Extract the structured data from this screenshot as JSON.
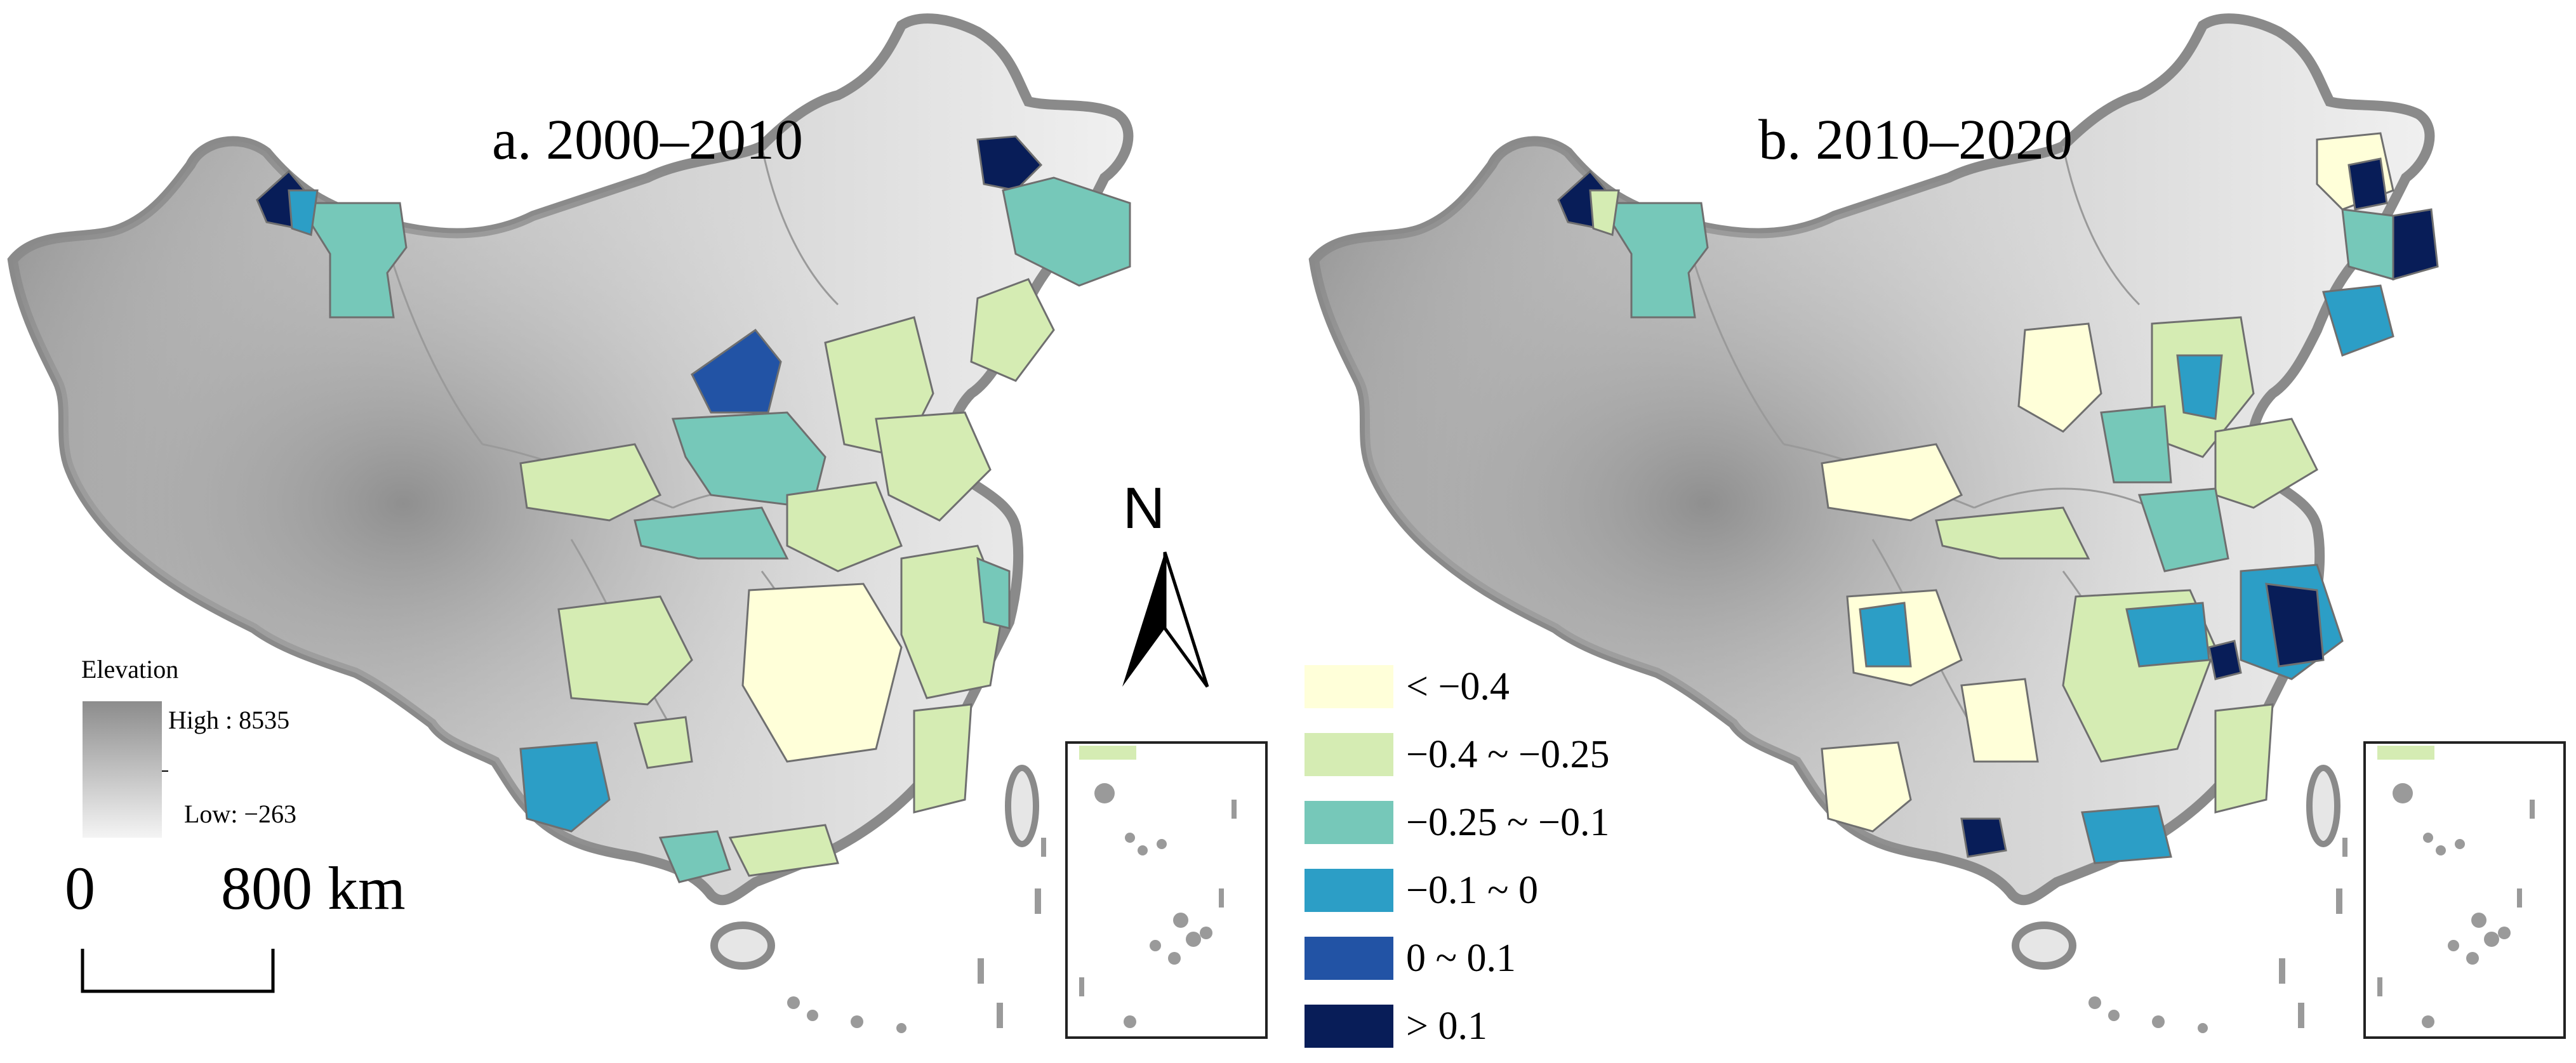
{
  "panels": [
    {
      "title": "a. 2000–2010",
      "period": "2000–2010"
    },
    {
      "title": "b. 2010–2020",
      "period": "2010–2020"
    }
  ],
  "elevation_legend": {
    "title": "Elevation",
    "high_label": "High : 8535",
    "low_label": "Low: −263",
    "high_value": 8535,
    "low_value": -263
  },
  "scale_bar": {
    "start_label": "0",
    "end_label": "800 km"
  },
  "north_arrow": {
    "label": "N"
  },
  "class_legend": {
    "items": [
      {
        "label": "< −0.4",
        "color": "#ffffd9"
      },
      {
        "label": "−0.4 ~ −0.25",
        "color": "#d5ecb3"
      },
      {
        "label": "−0.25 ~ −0.1",
        "color": "#76c8b9"
      },
      {
        "label": "−0.1 ~ 0",
        "color": "#2c9ec6"
      },
      {
        "label": "0 ~ 0.1",
        "color": "#2253a5"
      },
      {
        "label": "> 0.1",
        "color": "#081d58"
      }
    ]
  },
  "colors": {
    "boundary": "#8a8a8a",
    "terrain_high": "#8c8c8c",
    "terrain_low": "#f4f4f4"
  }
}
